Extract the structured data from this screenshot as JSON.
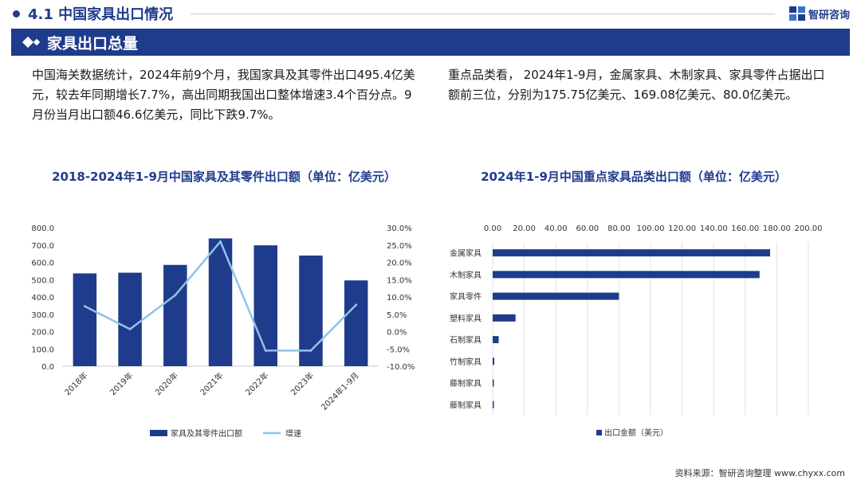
{
  "header": {
    "section_title": "4.1 中国家具出口情况",
    "brand_name": "智研咨询"
  },
  "banner": {
    "title": "家具出口总量"
  },
  "paragraphs": {
    "left": "中国海关数据统计，2024年前9个月，我国家具及其零件出口495.4亿美元，较去年同期增长7.7%，高出同期我国出口整体增速3.4个百分点。9月份当月出口额46.6亿美元，同比下跌9.7%。",
    "right": "重点品类看， 2024年1-9月，金属家具、木制家具、家具零件占据出口额前三位，分别为175.75亿美元、169.08亿美元、80.0亿美元。"
  },
  "chart_data": [
    {
      "type": "bar",
      "title": "2018-2024年1-9月中国家具及其零件出口额（单位：亿美元）",
      "categories": [
        "2018年",
        "2019年",
        "2020年",
        "2021年",
        "2022年",
        "2023年",
        "2024年1-9月"
      ],
      "series": [
        {
          "name": "家具及其零件出口额",
          "type": "bar",
          "axis": "left",
          "color": "#1f3b8c",
          "values": [
            536,
            540,
            585,
            738,
            698,
            639,
            495.4
          ]
        },
        {
          "name": "增速",
          "type": "line",
          "axis": "right",
          "color": "#8fc3e6",
          "values": [
            7.3,
            0.7,
            10.5,
            26.0,
            -5.5,
            -5.5,
            7.7
          ]
        }
      ],
      "yleft": {
        "lim": [
          0,
          800
        ],
        "ticks": [
          "0.0",
          "100.0",
          "200.0",
          "300.0",
          "400.0",
          "500.0",
          "600.0",
          "700.0",
          "800.0"
        ]
      },
      "yright": {
        "lim": [
          -10,
          30
        ],
        "ticks": [
          "-10.0%",
          "-5.0%",
          "0.0%",
          "5.0%",
          "10.0%",
          "15.0%",
          "20.0%",
          "25.0%",
          "30.0%"
        ]
      },
      "legend_position": "bottom",
      "grid": false
    },
    {
      "type": "bar",
      "orientation": "horizontal",
      "title": "2024年1-9月中国重点家具品类出口额（单位：亿美元）",
      "categories": [
        "金属家具",
        "木制家具",
        "家具零件",
        "塑料家具",
        "石制家具",
        "竹制家具",
        "藤制家具",
        "藤制家具"
      ],
      "series": [
        {
          "name": "出口金额（美元）",
          "color": "#1f3b8c",
          "values": [
            175.75,
            169.08,
            80.0,
            14.5,
            3.8,
            1.0,
            0.4,
            0.3
          ]
        }
      ],
      "xlim": [
        0,
        200
      ],
      "xticks": [
        "0.00",
        "20.00",
        "40.00",
        "60.00",
        "80.00",
        "100.00",
        "120.00",
        "140.00",
        "160.00",
        "180.00",
        "200.00"
      ],
      "axis_position": "top",
      "grid": true,
      "legend_position": "bottom"
    }
  ],
  "footer": {
    "source": "资料来源：智研咨询整理  www.chyxx.com"
  }
}
